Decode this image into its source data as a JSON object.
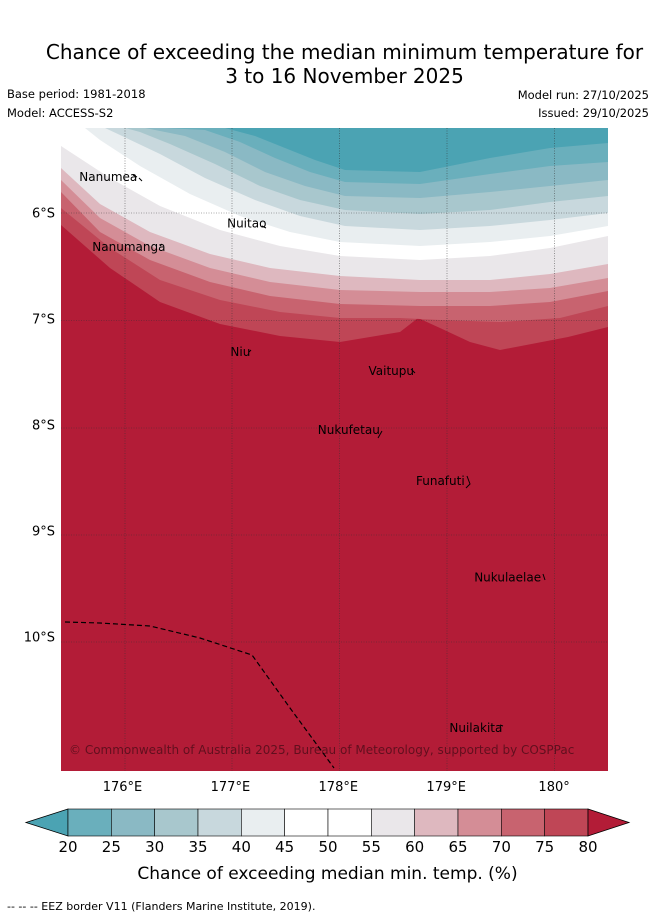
{
  "title_line1": "Chance of exceeding the median minimum temperature for",
  "title_line2": "3 to 16 November 2025",
  "base_period": "Base period: 1981-2018",
  "model": "Model: ACCESS-S2",
  "model_run": "Model run: 27/10/2025",
  "issued": "Issued: 29/10/2025",
  "map": {
    "lat_labels": [
      "6°S",
      "7°S",
      "8°S",
      "9°S",
      "10°S"
    ],
    "lat_values": [
      -6,
      -7,
      -8,
      -9,
      -10
    ],
    "lon_labels": [
      "176°E",
      "177°E",
      "178°E",
      "179°E",
      "180°"
    ],
    "lon_values": [
      176,
      177,
      178,
      179,
      180
    ],
    "extent": {
      "lon_min": 175.43,
      "lon_max": 180.5,
      "lat_min": -11.27,
      "lat_max": -5.2
    },
    "islands": [
      {
        "name": "Nanumea",
        "lon": 175.6,
        "lat": -5.7
      },
      {
        "name": "Nuitao",
        "lon": 176.97,
        "lat": -6.14
      },
      {
        "name": "Nanumanga",
        "lon": 175.72,
        "lat": -6.36
      },
      {
        "name": "Niu",
        "lon": 177.0,
        "lat": -7.35
      },
      {
        "name": "Vaitupu",
        "lon": 178.28,
        "lat": -7.53
      },
      {
        "name": "Nukufetau",
        "lon": 177.81,
        "lat": -8.09
      },
      {
        "name": "Funafuti",
        "lon": 178.72,
        "lat": -8.57
      },
      {
        "name": "Nukulaelae",
        "lon": 179.26,
        "lat": -9.48
      },
      {
        "name": "Nuilakita",
        "lon": 179.03,
        "lat": -10.9
      }
    ],
    "copyright": "© Commonwealth of Australia 2025, Bureau of Meteorology, supported by COSPPac"
  },
  "colorbar": {
    "ticks": [
      "20",
      "25",
      "30",
      "35",
      "40",
      "45",
      "50",
      "55",
      "60",
      "65",
      "70",
      "75",
      "80"
    ],
    "colors": [
      "#4ba3b3",
      "#6aafbc",
      "#8ab9c4",
      "#a8c7cd",
      "#c8d8dd",
      "#e9eef0",
      "#ffffff",
      "#ffffff",
      "#eae7ea",
      "#deb8bf",
      "#d48d96",
      "#c8636f",
      "#bf4656",
      "#b31c37"
    ],
    "title": "Chance of exceeding median min. temp. (%)"
  },
  "footnote": "--  --  -- EEZ border V11 (Flanders Marine Institute, 2019)."
}
